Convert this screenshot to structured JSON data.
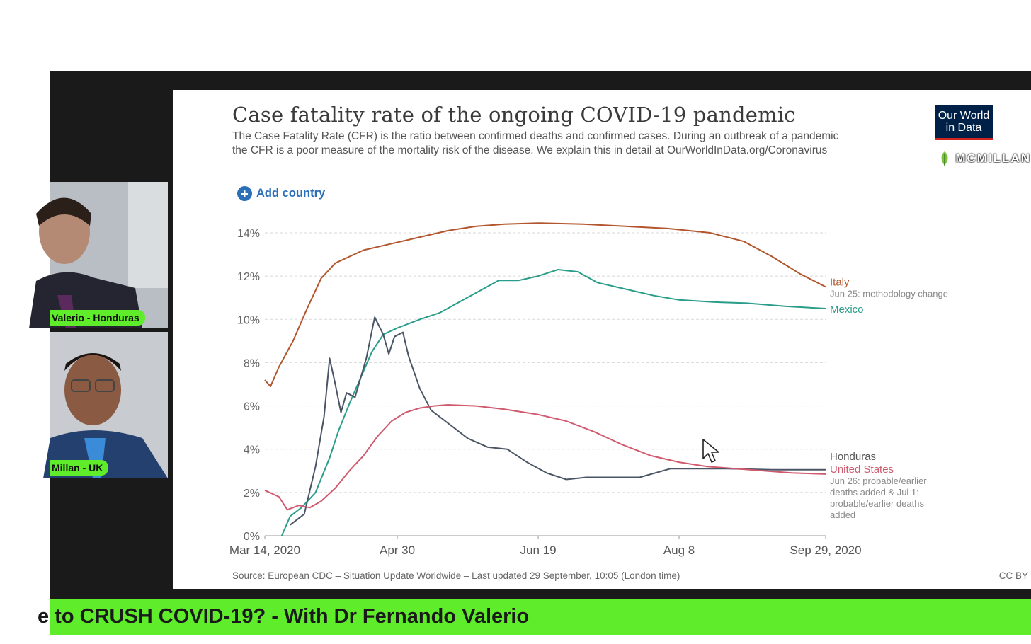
{
  "participants": [
    {
      "name": "Valerio - Honduras"
    },
    {
      "name": "Millan - UK"
    }
  ],
  "banner": {
    "text": "e to CRUSH COVID-19? - With Dr Fernando Valerio"
  },
  "brand": {
    "name": "MCMILLAN",
    "logo_icon": "leaf-icon"
  },
  "slide": {
    "logo_text": "Our World in Data",
    "add_country": {
      "label": "Add country",
      "icon": "plus-circle-icon"
    },
    "source": "Source: European CDC – Situation Update Worldwide – Last updated 29 September, 10:05 (London time)",
    "license": "CC BY",
    "annotations": {
      "italy_note": "Jun 25: methodology change",
      "us_note_lines": [
        "Jun 26: probable/earlier",
        "deaths added & Jul 1:",
        "probable/earlier deaths",
        "added"
      ]
    }
  },
  "colors": {
    "italy": "#b3562e",
    "mexico": "#2a9d8a",
    "honduras": "#4a5566",
    "united_states": "#d05a6e",
    "banner": "#5fec2a",
    "owid_navy": "#002147",
    "owid_red": "#ce261e",
    "link": "#2b6fb8"
  },
  "chart_data": {
    "type": "line",
    "title": "Case fatality rate of the ongoing COVID-19 pandemic",
    "subtitle": "The Case Fatality Rate (CFR) is the ratio between confirmed deaths and confirmed cases. During an outbreak of a pandemic the CFR is a poor measure of the mortality risk of the disease. We explain this in detail at OurWorldInData.org/Coronavirus",
    "xlabel": "",
    "ylabel": "",
    "x_ticks": [
      "Mar 14, 2020",
      "Apr 30",
      "Jun 19",
      "Aug 8",
      "Sep 29, 2020"
    ],
    "x_range": [
      "2020-03-14",
      "2020-09-29"
    ],
    "y_ticks": [
      "0%",
      "2%",
      "4%",
      "6%",
      "8%",
      "10%",
      "12%",
      "14%"
    ],
    "ylim": [
      0,
      14
    ],
    "grid": true,
    "series": [
      {
        "name": "Italy",
        "key": "italy",
        "points": [
          [
            "2020-03-14",
            7.2
          ],
          [
            "2020-03-16",
            6.9
          ],
          [
            "2020-03-19",
            7.8
          ],
          [
            "2020-03-24",
            9.0
          ],
          [
            "2020-03-29",
            10.5
          ],
          [
            "2020-04-03",
            11.9
          ],
          [
            "2020-04-08",
            12.6
          ],
          [
            "2020-04-13",
            12.9
          ],
          [
            "2020-04-18",
            13.2
          ],
          [
            "2020-04-28",
            13.5
          ],
          [
            "2020-05-08",
            13.8
          ],
          [
            "2020-05-18",
            14.1
          ],
          [
            "2020-05-28",
            14.3
          ],
          [
            "2020-06-07",
            14.4
          ],
          [
            "2020-06-19",
            14.45
          ],
          [
            "2020-07-05",
            14.4
          ],
          [
            "2020-07-20",
            14.3
          ],
          [
            "2020-08-04",
            14.2
          ],
          [
            "2020-08-19",
            14.0
          ],
          [
            "2020-08-31",
            13.6
          ],
          [
            "2020-09-10",
            12.9
          ],
          [
            "2020-09-20",
            12.1
          ],
          [
            "2020-09-29",
            11.5
          ]
        ]
      },
      {
        "name": "Mexico",
        "key": "mexico",
        "points": [
          [
            "2020-03-20",
            0.0
          ],
          [
            "2020-03-23",
            0.9
          ],
          [
            "2020-03-27",
            1.3
          ],
          [
            "2020-04-01",
            2.0
          ],
          [
            "2020-04-06",
            3.6
          ],
          [
            "2020-04-09",
            4.8
          ],
          [
            "2020-04-13",
            6.1
          ],
          [
            "2020-04-17",
            7.3
          ],
          [
            "2020-04-21",
            8.5
          ],
          [
            "2020-04-25",
            9.3
          ],
          [
            "2020-04-30",
            9.6
          ],
          [
            "2020-05-08",
            10.0
          ],
          [
            "2020-05-15",
            10.3
          ],
          [
            "2020-05-22",
            10.8
          ],
          [
            "2020-05-29",
            11.3
          ],
          [
            "2020-06-05",
            11.8
          ],
          [
            "2020-06-12",
            11.8
          ],
          [
            "2020-06-19",
            12.0
          ],
          [
            "2020-06-26",
            12.3
          ],
          [
            "2020-07-03",
            12.2
          ],
          [
            "2020-07-10",
            11.7
          ],
          [
            "2020-07-20",
            11.4
          ],
          [
            "2020-07-30",
            11.1
          ],
          [
            "2020-08-08",
            10.9
          ],
          [
            "2020-08-20",
            10.8
          ],
          [
            "2020-09-01",
            10.75
          ],
          [
            "2020-09-15",
            10.6
          ],
          [
            "2020-09-29",
            10.5
          ]
        ]
      },
      {
        "name": "Honduras",
        "key": "honduras",
        "points": [
          [
            "2020-03-23",
            0.5
          ],
          [
            "2020-03-28",
            1.0
          ],
          [
            "2020-04-01",
            3.2
          ],
          [
            "2020-04-04",
            5.5
          ],
          [
            "2020-04-06",
            8.2
          ],
          [
            "2020-04-08",
            7.0
          ],
          [
            "2020-04-10",
            5.7
          ],
          [
            "2020-04-12",
            6.6
          ],
          [
            "2020-04-15",
            6.4
          ],
          [
            "2020-04-19",
            8.2
          ],
          [
            "2020-04-22",
            10.1
          ],
          [
            "2020-04-25",
            9.3
          ],
          [
            "2020-04-27",
            8.4
          ],
          [
            "2020-04-29",
            9.2
          ],
          [
            "2020-05-02",
            9.4
          ],
          [
            "2020-05-04",
            8.3
          ],
          [
            "2020-05-08",
            6.8
          ],
          [
            "2020-05-12",
            5.8
          ],
          [
            "2020-05-18",
            5.2
          ],
          [
            "2020-05-25",
            4.5
          ],
          [
            "2020-06-01",
            4.1
          ],
          [
            "2020-06-08",
            4.0
          ],
          [
            "2020-06-15",
            3.4
          ],
          [
            "2020-06-22",
            2.9
          ],
          [
            "2020-06-29",
            2.6
          ],
          [
            "2020-07-06",
            2.7
          ],
          [
            "2020-07-15",
            2.7
          ],
          [
            "2020-07-25",
            2.7
          ],
          [
            "2020-08-05",
            3.1
          ],
          [
            "2020-08-15",
            3.1
          ],
          [
            "2020-08-25",
            3.1
          ],
          [
            "2020-09-10",
            3.05
          ],
          [
            "2020-09-29",
            3.05
          ]
        ]
      },
      {
        "name": "United States",
        "key": "united_states",
        "points": [
          [
            "2020-03-14",
            2.1
          ],
          [
            "2020-03-19",
            1.8
          ],
          [
            "2020-03-22",
            1.2
          ],
          [
            "2020-03-26",
            1.4
          ],
          [
            "2020-03-30",
            1.3
          ],
          [
            "2020-04-03",
            1.6
          ],
          [
            "2020-04-08",
            2.2
          ],
          [
            "2020-04-13",
            3.0
          ],
          [
            "2020-04-18",
            3.7
          ],
          [
            "2020-04-23",
            4.6
          ],
          [
            "2020-04-28",
            5.3
          ],
          [
            "2020-05-03",
            5.7
          ],
          [
            "2020-05-08",
            5.9
          ],
          [
            "2020-05-13",
            6.0
          ],
          [
            "2020-05-18",
            6.05
          ],
          [
            "2020-05-28",
            6.0
          ],
          [
            "2020-06-07",
            5.85
          ],
          [
            "2020-06-19",
            5.6
          ],
          [
            "2020-06-29",
            5.3
          ],
          [
            "2020-07-09",
            4.8
          ],
          [
            "2020-07-19",
            4.2
          ],
          [
            "2020-07-29",
            3.7
          ],
          [
            "2020-08-08",
            3.4
          ],
          [
            "2020-08-18",
            3.2
          ],
          [
            "2020-08-28",
            3.1
          ],
          [
            "2020-09-07",
            3.0
          ],
          [
            "2020-09-17",
            2.9
          ],
          [
            "2020-09-29",
            2.85
          ]
        ]
      }
    ]
  }
}
